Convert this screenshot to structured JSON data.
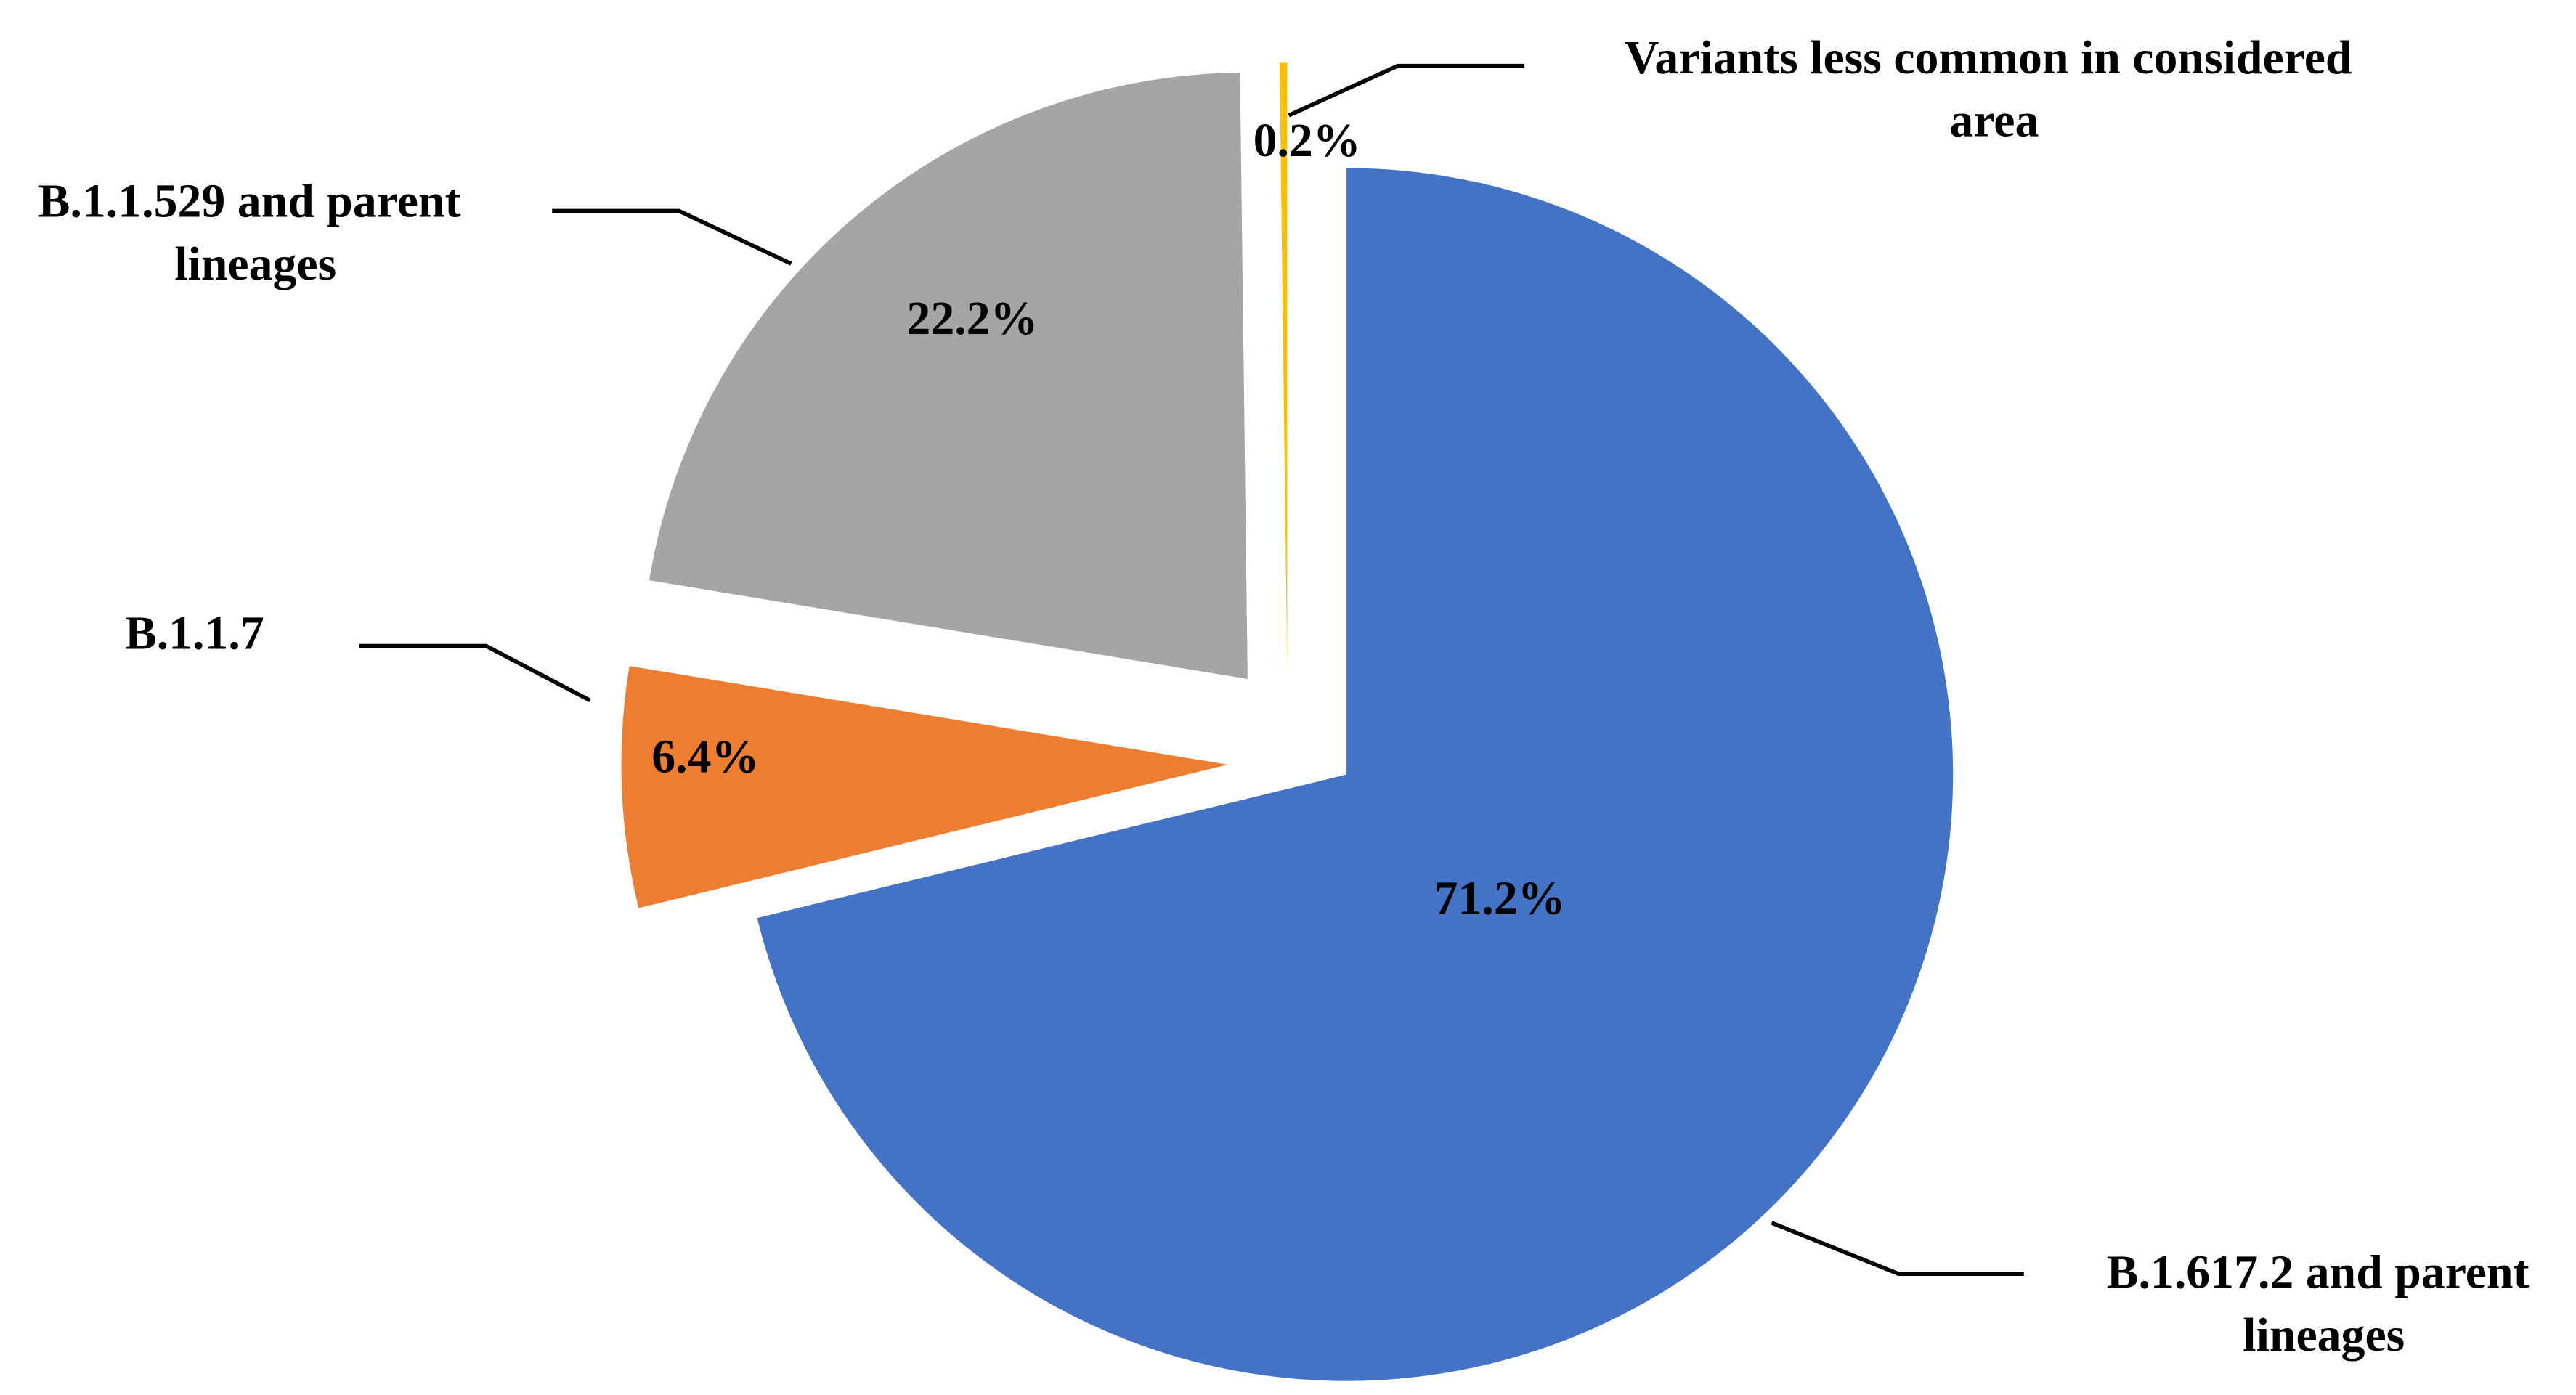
{
  "chart_data": {
    "type": "pie",
    "categories": [
      "B.1.617.2 and parent lineages",
      "B.1.1.7",
      "B.1.1.529 and parent lineages",
      "Variants less common in considered area"
    ],
    "values": [
      71.2,
      6.4,
      22.2,
      0.2
    ],
    "value_labels": [
      "71.2%",
      "6.4%",
      "22.2%",
      "0.2%"
    ],
    "colors": [
      "#4472c4",
      "#ed7d31",
      "#a5a5a5",
      "#ffc000"
    ]
  }
}
